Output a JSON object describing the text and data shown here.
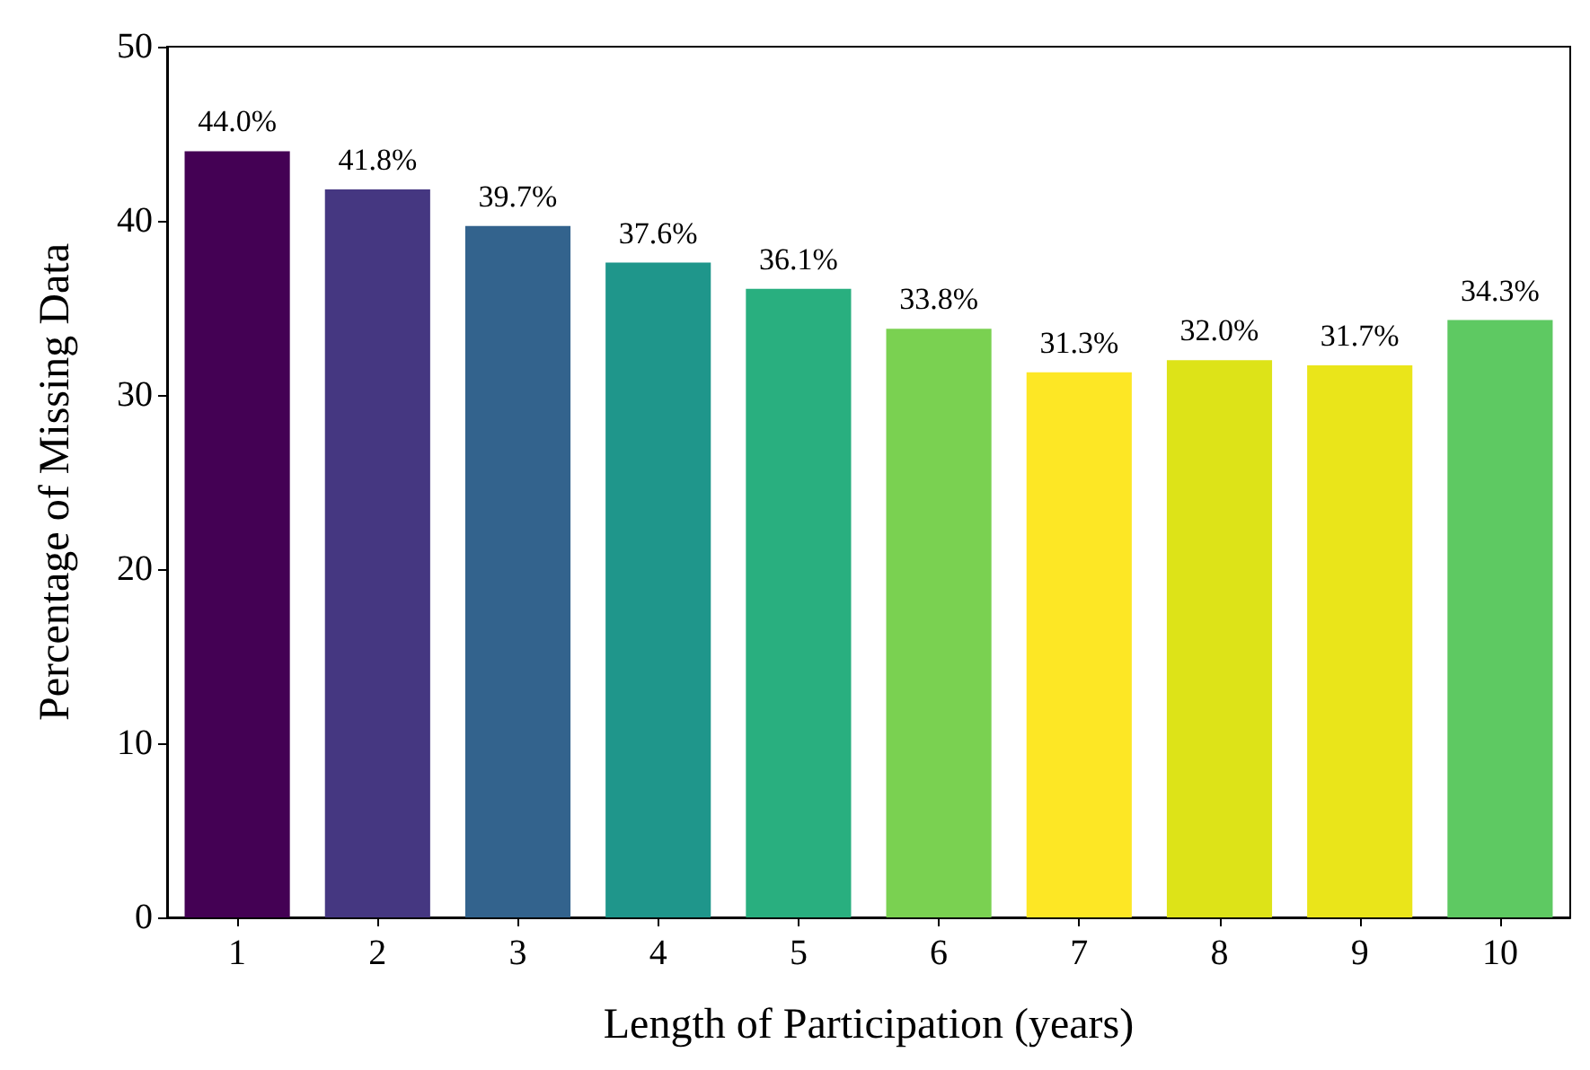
{
  "chart_data": {
    "type": "bar",
    "xlabel": "Length of Participation (years)",
    "ylabel": "Percentage of Missing Data",
    "categories": [
      "1",
      "2",
      "3",
      "4",
      "5",
      "6",
      "7",
      "8",
      "9",
      "10"
    ],
    "values": [
      44.0,
      41.8,
      39.7,
      37.6,
      36.1,
      33.8,
      31.3,
      32.0,
      31.7,
      34.3
    ],
    "value_labels": [
      "44.0%",
      "41.8%",
      "39.7%",
      "37.6%",
      "36.1%",
      "33.8%",
      "31.3%",
      "32.0%",
      "31.7%",
      "34.3%"
    ],
    "colors": [
      "#440154",
      "#453781",
      "#33638d",
      "#1f968b",
      "#29af7f",
      "#7ad151",
      "#fde725",
      "#dde318",
      "#eae51a",
      "#5ec962"
    ],
    "ylim": [
      0,
      50
    ],
    "yticks": [
      0,
      10,
      20,
      30,
      40,
      50
    ],
    "grid": false
  }
}
